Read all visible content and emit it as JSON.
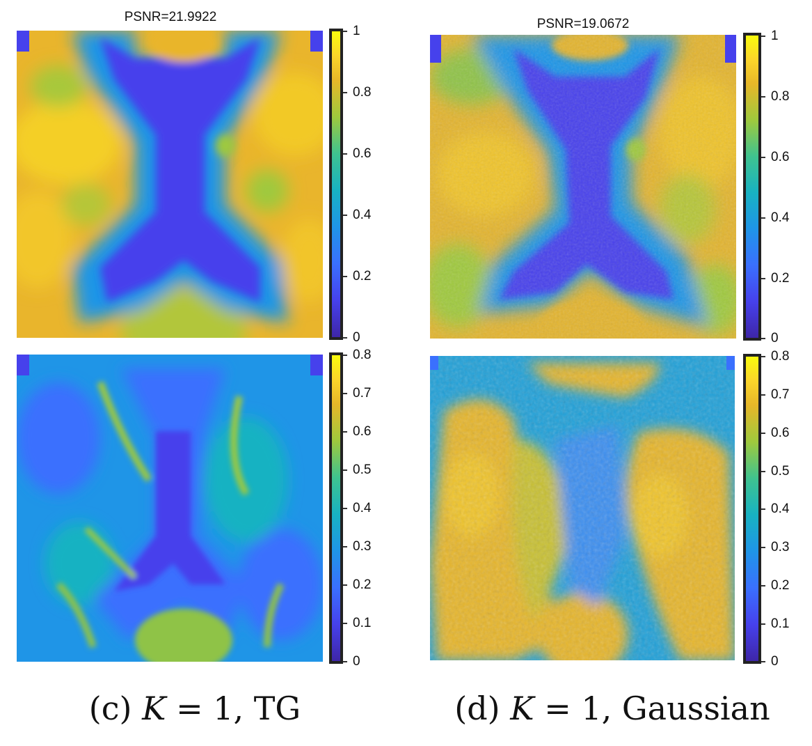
{
  "figure": {
    "columns": [
      {
        "title": "PSNR=21.9922",
        "caption_prefix": "(c)",
        "caption_var": "K",
        "caption_rest": "= 1, TG",
        "top_colorbar_ticks": [
          "1",
          "0.8",
          "0.6",
          "0.4",
          "0.2",
          "0"
        ],
        "bottom_colorbar_ticks": [
          "0.8",
          "0.7",
          "0.6",
          "0.5",
          "0.4",
          "0.3",
          "0.2",
          "0.1",
          "0"
        ]
      },
      {
        "title": "PSNR=19.0672",
        "caption_prefix": "(d)",
        "caption_var": "K",
        "caption_rest": "= 1, Gaussian",
        "top_colorbar_ticks": [
          "1",
          "0.8",
          "0.6",
          "0.4",
          "0.2",
          "0"
        ],
        "bottom_colorbar_ticks": [
          "0.8",
          "0.7",
          "0.6",
          "0.5",
          "0.4",
          "0.3",
          "0.2",
          "0.1",
          "0"
        ]
      }
    ],
    "colormap": "parula",
    "colors": {
      "low": "#3e26a8",
      "mid_low": "#3a70fe",
      "mid": "#18b2c2",
      "mid_high": "#9fc93d",
      "high": "#e7b729",
      "top": "#f9fb0e"
    }
  }
}
